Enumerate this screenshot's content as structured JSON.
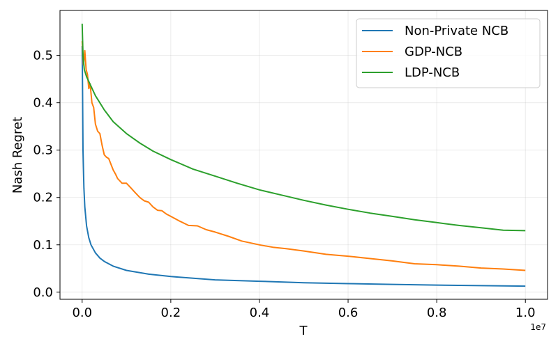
{
  "chart_data": {
    "type": "line",
    "title": "",
    "xlabel": "T",
    "ylabel": "Nash Regret",
    "x_offset_label": "1e7",
    "xlim": [
      -0.05,
      1.05
    ],
    "ylim": [
      -0.015,
      0.595
    ],
    "xticks": [
      0.0,
      0.2,
      0.4,
      0.6,
      0.8,
      1.0
    ],
    "xtick_labels": [
      "0.0",
      "0.2",
      "0.4",
      "0.6",
      "0.8",
      "1.0"
    ],
    "yticks": [
      0.0,
      0.1,
      0.2,
      0.3,
      0.4,
      0.5
    ],
    "ytick_labels": [
      "0.0",
      "0.1",
      "0.2",
      "0.3",
      "0.4",
      "0.5"
    ],
    "grid": true,
    "legend_position": "top-right",
    "series": [
      {
        "name": "Non-Private NCB",
        "color": "#1f77b4",
        "x": [
          0.0,
          0.001,
          0.002,
          0.004,
          0.006,
          0.01,
          0.015,
          0.02,
          0.03,
          0.04,
          0.05,
          0.07,
          0.1,
          0.15,
          0.2,
          0.3,
          0.4,
          0.5,
          0.6,
          0.7,
          0.8,
          0.9,
          1.0
        ],
        "y": [
          0.52,
          0.42,
          0.3,
          0.22,
          0.18,
          0.14,
          0.115,
          0.1,
          0.083,
          0.072,
          0.065,
          0.055,
          0.046,
          0.038,
          0.033,
          0.026,
          0.023,
          0.02,
          0.018,
          0.0165,
          0.015,
          0.0138,
          0.0128
        ]
      },
      {
        "name": "GDP-NCB",
        "color": "#ff7f0e",
        "x": [
          0.0,
          0.003,
          0.006,
          0.009,
          0.012,
          0.015,
          0.018,
          0.022,
          0.026,
          0.03,
          0.035,
          0.04,
          0.045,
          0.05,
          0.055,
          0.06,
          0.07,
          0.075,
          0.08,
          0.09,
          0.1,
          0.11,
          0.12,
          0.13,
          0.14,
          0.15,
          0.16,
          0.17,
          0.18,
          0.19,
          0.2,
          0.22,
          0.24,
          0.26,
          0.28,
          0.3,
          0.33,
          0.36,
          0.4,
          0.43,
          0.46,
          0.5,
          0.55,
          0.6,
          0.65,
          0.7,
          0.75,
          0.8,
          0.85,
          0.9,
          0.95,
          1.0
        ],
        "y": [
          0.53,
          0.48,
          0.51,
          0.47,
          0.46,
          0.43,
          0.44,
          0.4,
          0.39,
          0.355,
          0.34,
          0.335,
          0.31,
          0.29,
          0.285,
          0.282,
          0.258,
          0.25,
          0.24,
          0.23,
          0.23,
          0.22,
          0.21,
          0.2,
          0.193,
          0.19,
          0.18,
          0.173,
          0.172,
          0.165,
          0.16,
          0.15,
          0.141,
          0.14,
          0.132,
          0.127,
          0.118,
          0.108,
          0.1,
          0.095,
          0.092,
          0.087,
          0.08,
          0.076,
          0.071,
          0.066,
          0.06,
          0.058,
          0.055,
          0.051,
          0.049,
          0.046
        ]
      },
      {
        "name": "LDP-NCB",
        "color": "#2ca02c",
        "x": [
          0.0,
          0.002,
          0.005,
          0.01,
          0.02,
          0.03,
          0.04,
          0.05,
          0.07,
          0.1,
          0.13,
          0.16,
          0.2,
          0.25,
          0.3,
          0.35,
          0.4,
          0.45,
          0.5,
          0.55,
          0.6,
          0.65,
          0.7,
          0.75,
          0.8,
          0.85,
          0.9,
          0.95,
          1.0
        ],
        "y": [
          0.567,
          0.5,
          0.47,
          0.455,
          0.435,
          0.415,
          0.4,
          0.385,
          0.36,
          0.335,
          0.315,
          0.298,
          0.28,
          0.26,
          0.245,
          0.23,
          0.216,
          0.205,
          0.194,
          0.184,
          0.175,
          0.167,
          0.16,
          0.153,
          0.147,
          0.141,
          0.136,
          0.131,
          0.13
        ]
      }
    ]
  }
}
